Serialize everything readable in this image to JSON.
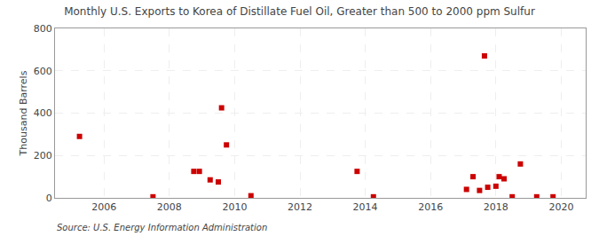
{
  "chart_data": {
    "type": "scatter",
    "title": "Monthly U.S. Exports to Korea of Distillate Fuel Oil, Greater than 500 to 2000 ppm Sulfur",
    "ylabel": "Thousand Barrels",
    "annotations": [
      "Source: U.S. Energy Information Administration"
    ],
    "x": [
      2005.25,
      2007.5,
      2008.75,
      2008.92,
      2009.25,
      2009.5,
      2009.6,
      2009.75,
      2010.5,
      2013.75,
      2014.25,
      2017.1,
      2017.3,
      2017.5,
      2017.65,
      2017.75,
      2018.0,
      2018.1,
      2018.25,
      2018.5,
      2018.75,
      2019.25,
      2019.75
    ],
    "values": [
      290,
      5,
      125,
      125,
      85,
      75,
      425,
      250,
      10,
      125,
      5,
      40,
      100,
      35,
      670,
      50,
      55,
      100,
      90,
      5,
      160,
      5,
      5
    ],
    "color": "#cc0000",
    "marker": "square",
    "xlim": [
      2004.5,
      2020.75
    ],
    "ylim": [
      0,
      800
    ],
    "xticks": [
      2006,
      2008,
      2010,
      2012,
      2014,
      2016,
      2018,
      2020
    ],
    "yticks": [
      0,
      200,
      400,
      600,
      800
    ],
    "grid": true
  }
}
